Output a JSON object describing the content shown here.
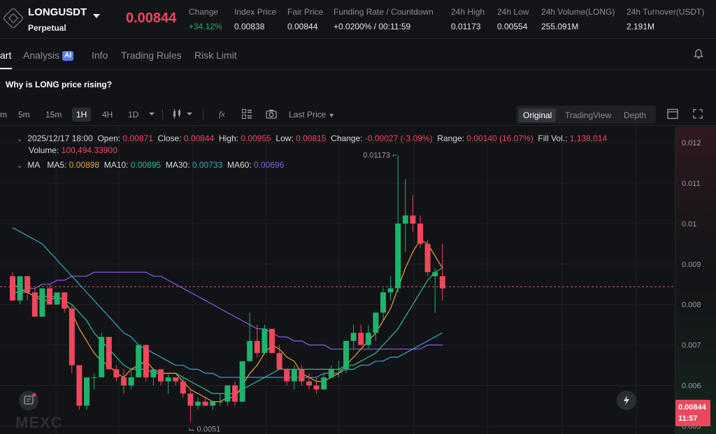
{
  "header": {
    "symbol": "LONGUSDT",
    "contract_type": "Perpetual",
    "last_price": "0.00844",
    "stats": [
      {
        "label": "Change",
        "value": "+34.12%",
        "up": true
      },
      {
        "label": "Index Price",
        "value": "0.00838"
      },
      {
        "label": "Fair Price",
        "value": "0.00844"
      },
      {
        "label": "Funding Rate / Countdown",
        "value": "+0.0200% / 00:11:59"
      },
      {
        "label": "24h High",
        "value": "0.01173"
      },
      {
        "label": "24h Low",
        "value": "0.00554"
      },
      {
        "label": "24h Volume(LONG)",
        "value": "255.091M"
      },
      {
        "label": "24h Turnover(USDT)",
        "value": "2.191M"
      }
    ]
  },
  "tabs": [
    "art",
    "Analysis",
    "Info",
    "Trading Rules",
    "Risk Limit"
  ],
  "analysis_badge": "AI",
  "question": "Why is LONG price rising?",
  "toolbar": {
    "timeframes": [
      "m",
      "5m",
      "15m",
      "1H",
      "4H",
      "1D"
    ],
    "active_timeframe": "1H",
    "price_type": "Last Price",
    "views": [
      "Original",
      "TradingView",
      "Depth"
    ],
    "active_view": "Original"
  },
  "legend": {
    "date": "2025/12/17 18:00",
    "open_label": "Open:",
    "open": "0.00871",
    "close_label": "Close:",
    "close": "0.00844",
    "high_label": "High:",
    "high": "0.00955",
    "low_label": "Low:",
    "low": "0.00815",
    "change_label": "Change:",
    "change": "-0.00027 (-3.09%)",
    "range_label": "Range:",
    "range": "0.00140 (16.07%)",
    "fillvol_label": "Fill Vol.:",
    "fillvol": "1,138,014",
    "volume_label": "Volume:",
    "volume": "100,494.33900",
    "ma_title": "MA",
    "ma5_label": "MA5:",
    "ma5": "0.00898",
    "ma10_label": "MA10:",
    "ma10": "0.00895",
    "ma30_label": "MA30:",
    "ma30": "0.00733",
    "ma60_label": "MA60:",
    "ma60": "0.00696"
  },
  "price_tag": {
    "price": "0.00844",
    "countdown": "11:57"
  },
  "watermark": "MEXC",
  "colors": {
    "up": "#20b26c",
    "down": "#f0475d",
    "ma5": "#e8a33a",
    "ma10": "#2bc28a",
    "ma30": "#3ea6c8",
    "ma60": "#8a5cf0"
  },
  "chart_data": {
    "type": "candlestick",
    "ylim": [
      0.0048,
      0.0124
    ],
    "y_ticks": [
      "0.012",
      "0.011",
      "0.01",
      "0.009",
      "0.008",
      "0.007",
      "0.006",
      "0.005"
    ],
    "y_tick_values": [
      0.012,
      0.011,
      0.01,
      0.009,
      0.008,
      0.007,
      0.006,
      0.005
    ],
    "last": 0.00844,
    "high_label": "0.01173",
    "low_label": "0.0051",
    "candles": [
      [
        0.0087,
        0.0088,
        0.0081,
        0.0081
      ],
      [
        0.0081,
        0.0087,
        0.008,
        0.0087
      ],
      [
        0.0087,
        0.0087,
        0.0081,
        0.0083
      ],
      [
        0.0083,
        0.0084,
        0.0077,
        0.0077
      ],
      [
        0.0077,
        0.0084,
        0.0077,
        0.0084
      ],
      [
        0.0084,
        0.0085,
        0.008,
        0.008
      ],
      [
        0.008,
        0.0083,
        0.008,
        0.0083
      ],
      [
        0.0083,
        0.0083,
        0.0078,
        0.0079
      ],
      [
        0.0079,
        0.008,
        0.0063,
        0.0065
      ],
      [
        0.0065,
        0.0065,
        0.0054,
        0.0055
      ],
      [
        0.0055,
        0.0062,
        0.0054,
        0.0062
      ],
      [
        0.0062,
        0.0063,
        0.0059,
        0.0062
      ],
      [
        0.0062,
        0.0073,
        0.0062,
        0.0072
      ],
      [
        0.0072,
        0.0072,
        0.0064,
        0.0064
      ],
      [
        0.0064,
        0.0065,
        0.0061,
        0.0062
      ],
      [
        0.0062,
        0.0064,
        0.0058,
        0.006
      ],
      [
        0.006,
        0.0064,
        0.0059,
        0.0062
      ],
      [
        0.0062,
        0.007,
        0.0062,
        0.007
      ],
      [
        0.007,
        0.007,
        0.0061,
        0.0062
      ],
      [
        0.0062,
        0.0064,
        0.006,
        0.0064
      ],
      [
        0.0064,
        0.0064,
        0.006,
        0.0061
      ],
      [
        0.0061,
        0.0063,
        0.0058,
        0.0062
      ],
      [
        0.0062,
        0.0062,
        0.006,
        0.0061
      ],
      [
        0.0061,
        0.0062,
        0.0057,
        0.0058
      ],
      [
        0.0058,
        0.0059,
        0.0051,
        0.0055
      ],
      [
        0.0055,
        0.0057,
        0.0054,
        0.0056
      ],
      [
        0.0056,
        0.0057,
        0.0055,
        0.0055
      ],
      [
        0.0055,
        0.0056,
        0.0054,
        0.0056
      ],
      [
        0.0056,
        0.0058,
        0.0055,
        0.0056
      ],
      [
        0.0056,
        0.006,
        0.0055,
        0.006
      ],
      [
        0.006,
        0.0061,
        0.0055,
        0.0056
      ],
      [
        0.0056,
        0.0066,
        0.0056,
        0.0066
      ],
      [
        0.0066,
        0.0078,
        0.0066,
        0.0071
      ],
      [
        0.0071,
        0.0075,
        0.0067,
        0.0068
      ],
      [
        0.0068,
        0.0075,
        0.0068,
        0.0074
      ],
      [
        0.0074,
        0.0074,
        0.0068,
        0.0068
      ],
      [
        0.0068,
        0.007,
        0.0064,
        0.0064
      ],
      [
        0.0064,
        0.0064,
        0.006,
        0.0061
      ],
      [
        0.0061,
        0.0065,
        0.0059,
        0.0064
      ],
      [
        0.0064,
        0.0065,
        0.006,
        0.0061
      ],
      [
        0.0061,
        0.0063,
        0.0059,
        0.006
      ],
      [
        0.006,
        0.0062,
        0.0058,
        0.0059
      ],
      [
        0.0059,
        0.0063,
        0.0059,
        0.0062
      ],
      [
        0.0062,
        0.0065,
        0.0062,
        0.0064
      ],
      [
        0.0064,
        0.0066,
        0.0062,
        0.0064
      ],
      [
        0.0064,
        0.0071,
        0.0063,
        0.0071
      ],
      [
        0.0071,
        0.0075,
        0.0069,
        0.0073
      ],
      [
        0.0073,
        0.0075,
        0.007,
        0.007
      ],
      [
        0.007,
        0.0075,
        0.0069,
        0.0073
      ],
      [
        0.0073,
        0.0078,
        0.0071,
        0.0078
      ],
      [
        0.0078,
        0.0084,
        0.0076,
        0.0083
      ],
      [
        0.0083,
        0.0087,
        0.0081,
        0.0084
      ],
      [
        0.0084,
        0.0117,
        0.0083,
        0.01
      ],
      [
        0.01,
        0.0111,
        0.0093,
        0.0102
      ],
      [
        0.0102,
        0.0107,
        0.0098,
        0.01
      ],
      [
        0.01,
        0.0102,
        0.0094,
        0.0095
      ],
      [
        0.0095,
        0.0096,
        0.0087,
        0.0088
      ],
      [
        0.0087,
        0.0089,
        0.0078,
        0.0088
      ],
      [
        0.0087,
        0.0095,
        0.0081,
        0.0084
      ]
    ],
    "ma5": [
      0.0085,
      0.0084,
      0.0083,
      0.0082,
      0.0081,
      0.0081,
      0.0082,
      0.0081,
      0.0078,
      0.0074,
      0.0071,
      0.0068,
      0.0066,
      0.0065,
      0.0063,
      0.0062,
      0.0064,
      0.0065,
      0.0066,
      0.0064,
      0.0063,
      0.0063,
      0.0063,
      0.0061,
      0.0059,
      0.0058,
      0.0057,
      0.0056,
      0.0056,
      0.0057,
      0.0057,
      0.006,
      0.0063,
      0.0065,
      0.0068,
      0.007,
      0.0069,
      0.0067,
      0.0066,
      0.0063,
      0.0062,
      0.0061,
      0.0061,
      0.0062,
      0.0063,
      0.0065,
      0.0067,
      0.0069,
      0.0071,
      0.0073,
      0.0076,
      0.0079,
      0.0084,
      0.0089,
      0.0093,
      0.0096,
      0.0095,
      0.0092,
      0.0089
    ],
    "ma10": [
      0.0083,
      0.0083,
      0.0083,
      0.0082,
      0.0082,
      0.0082,
      0.0082,
      0.0081,
      0.008,
      0.0078,
      0.0076,
      0.0073,
      0.0071,
      0.0069,
      0.0067,
      0.0065,
      0.0064,
      0.0064,
      0.0064,
      0.0063,
      0.0063,
      0.0063,
      0.0063,
      0.0062,
      0.0061,
      0.006,
      0.0059,
      0.0058,
      0.0058,
      0.0058,
      0.0058,
      0.0059,
      0.006,
      0.0061,
      0.0062,
      0.0063,
      0.0064,
      0.0064,
      0.0064,
      0.0064,
      0.0064,
      0.0064,
      0.0064,
      0.0064,
      0.0064,
      0.0065,
      0.0065,
      0.0066,
      0.0067,
      0.0068,
      0.007,
      0.0072,
      0.0074,
      0.0077,
      0.008,
      0.0083,
      0.0086,
      0.0088,
      0.0089
    ],
    "ma30": [
      0.0099,
      0.0098,
      0.0097,
      0.0096,
      0.0095,
      0.0093,
      0.0091,
      0.0089,
      0.0087,
      0.0085,
      0.0083,
      0.0081,
      0.0079,
      0.0077,
      0.0075,
      0.0073,
      0.0072,
      0.007,
      0.0069,
      0.0068,
      0.0067,
      0.0066,
      0.0065,
      0.0065,
      0.0064,
      0.0064,
      0.0063,
      0.0063,
      0.0062,
      0.0062,
      0.0062,
      0.0062,
      0.0062,
      0.0062,
      0.0062,
      0.0062,
      0.0062,
      0.0062,
      0.0062,
      0.0062,
      0.0062,
      0.0062,
      0.0063,
      0.0063,
      0.0063,
      0.0064,
      0.0064,
      0.0065,
      0.0065,
      0.0066,
      0.0066,
      0.0067,
      0.0067,
      0.0068,
      0.0069,
      0.007,
      0.0071,
      0.0072,
      0.0073
    ],
    "ma60": [
      0.0083,
      0.0083,
      0.0084,
      0.0084,
      0.0085,
      0.0085,
      0.0086,
      0.0086,
      0.0087,
      0.0087,
      0.0087,
      0.0088,
      0.0088,
      0.0088,
      0.0088,
      0.0088,
      0.0088,
      0.0088,
      0.0088,
      0.0087,
      0.0087,
      0.0086,
      0.0085,
      0.0084,
      0.0083,
      0.0082,
      0.0081,
      0.008,
      0.0079,
      0.0078,
      0.0077,
      0.0076,
      0.0075,
      0.0074,
      0.0074,
      0.0073,
      0.0072,
      0.0072,
      0.0071,
      0.0071,
      0.007,
      0.007,
      0.007,
      0.0069,
      0.0069,
      0.0069,
      0.0069,
      0.0069,
      0.0069,
      0.0069,
      0.0069,
      0.0069,
      0.0069,
      0.0069,
      0.0069,
      0.0069,
      0.007,
      0.007,
      0.007
    ]
  }
}
